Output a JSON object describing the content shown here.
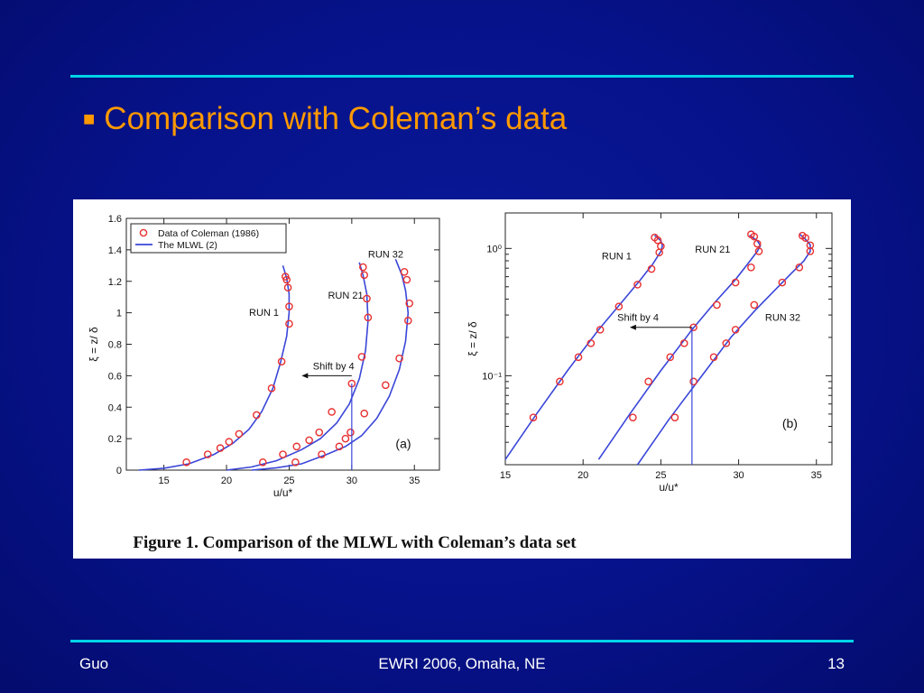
{
  "slide": {
    "bullet": "■",
    "title": "Comparison with Coleman’s data"
  },
  "footer": {
    "author": "Guo",
    "event": "EWRI 2006, Omaha, NE",
    "page": "13"
  },
  "figure_caption": "Figure 1.  Comparison of the MLWL with Coleman’s data set",
  "colors": {
    "background": "#06128a",
    "accent_rule": "#00d4e8",
    "title": "#ff9900",
    "model_line": "#3a46d8",
    "data_marker": "#e83030"
  },
  "chart_data": [
    {
      "type": "line",
      "panel_label": "(a)",
      "xlabel": "u/u*",
      "ylabel": "ξ = z/ δ",
      "xlim": [
        12,
        37
      ],
      "ylim": [
        0,
        1.6
      ],
      "x_ticks": [
        "15",
        "20",
        "25",
        "30",
        "35"
      ],
      "y_ticks": [
        "0",
        "0.2",
        "0.4",
        "0.6",
        "0.8",
        "1",
        "1.2",
        "1.4",
        "1.6"
      ],
      "legend": {
        "placement": "top-left",
        "entries": [
          "Data of Coleman (1986)",
          "The MLWL (2)"
        ]
      },
      "annotations": [
        {
          "text": "RUN 1",
          "x": 21.8,
          "y": 0.98
        },
        {
          "text": "RUN 21",
          "x": 28.1,
          "y": 1.09
        },
        {
          "text": "RUN 32",
          "x": 31.3,
          "y": 1.35
        },
        {
          "text": "Shift by 4",
          "x": 26.9,
          "y": 0.64
        },
        {
          "text": "(a)",
          "x": 33.5,
          "y": 0.14
        }
      ],
      "shift_arrow": {
        "from_x": 30,
        "to_x": 26,
        "y": 0.6
      },
      "vertical_line": {
        "x": 30,
        "y_from": 0,
        "y_to": 0.55
      },
      "series": [
        {
          "name": "RUN 1",
          "line": {
            "x": [
              13,
              15,
              17,
              19,
              20.5,
              21.8,
              22.8,
              23.7,
              24.3,
              24.8,
              25.0,
              25.0,
              24.8,
              24.5
            ],
            "y": [
              0.0,
              0.012,
              0.04,
              0.1,
              0.17,
              0.26,
              0.37,
              0.52,
              0.68,
              0.85,
              1.0,
              1.12,
              1.22,
              1.3
            ]
          },
          "points": {
            "x": [
              16.8,
              18.5,
              19.5,
              20.2,
              21.0,
              22.4,
              23.6,
              24.4,
              25.0,
              25.0,
              24.9,
              24.8,
              24.7
            ],
            "y": [
              0.05,
              0.1,
              0.14,
              0.18,
              0.23,
              0.35,
              0.52,
              0.69,
              0.93,
              1.04,
              1.16,
              1.21,
              1.23
            ]
          }
        },
        {
          "name": "RUN 21",
          "line": {
            "x": [
              20,
              22,
              24,
              26,
              27.5,
              28.8,
              29.8,
              30.6,
              31.1,
              31.3,
              31.2,
              30.9,
              30.6
            ],
            "y": [
              0.0,
              0.02,
              0.06,
              0.13,
              0.2,
              0.3,
              0.42,
              0.58,
              0.76,
              0.95,
              1.12,
              1.24,
              1.32
            ]
          },
          "points": {
            "x": [
              22.9,
              24.5,
              25.6,
              26.6,
              27.4,
              28.4,
              29.5,
              29.9,
              30.0,
              30.8,
              31.3,
              31.2,
              31.0,
              30.9
            ],
            "y": [
              0.05,
              0.1,
              0.15,
              0.19,
              0.24,
              0.37,
              0.2,
              0.24,
              0.55,
              0.72,
              0.97,
              1.09,
              1.24,
              1.29
            ]
          }
        },
        {
          "name": "RUN 32",
          "line": {
            "x": [
              22,
              24,
              26,
              28,
              29.5,
              30.8,
              32,
              33,
              33.8,
              34.3,
              34.5,
              34.3,
              34.0,
              33.5
            ],
            "y": [
              0.0,
              0.015,
              0.04,
              0.1,
              0.15,
              0.22,
              0.33,
              0.47,
              0.64,
              0.82,
              1.0,
              1.14,
              1.24,
              1.34
            ]
          },
          "points": {
            "x": [
              25.5,
              27.6,
              29.0,
              31.0,
              32.7,
              33.8,
              34.5,
              34.6,
              34.4,
              34.2
            ],
            "y": [
              0.05,
              0.1,
              0.15,
              0.36,
              0.54,
              0.71,
              0.95,
              1.06,
              1.21,
              1.26
            ]
          }
        }
      ]
    },
    {
      "type": "line",
      "panel_label": "(b)",
      "xlabel": "u/u*",
      "ylabel": "ξ = z/ δ",
      "yscale": "log",
      "xlim": [
        15,
        36
      ],
      "ylim": [
        0.02,
        1.9
      ],
      "x_ticks": [
        "15",
        "20",
        "25",
        "30",
        "35"
      ],
      "y_tick_labels": [
        "10⁻¹",
        "10⁰"
      ],
      "y_tick_values": [
        0.1,
        1
      ],
      "annotations": [
        {
          "text": "RUN 1",
          "x": 21.2,
          "y": 0.82
        },
        {
          "text": "RUN 21",
          "x": 27.2,
          "y": 0.93
        },
        {
          "text": "RUN 32",
          "x": 31.7,
          "y": 0.27
        },
        {
          "text": "Shift by 4",
          "x": 22.2,
          "y": 0.27
        },
        {
          "text": "(b)",
          "x": 32.8,
          "y": 0.039
        }
      ],
      "shift_arrow": {
        "from_x": 27,
        "to_x": 23,
        "y": 0.24
      },
      "vertical_line": {
        "x": 27,
        "y_from": 0.02,
        "y_to": 0.24
      },
      "series": [
        {
          "name": "RUN 1",
          "line": {
            "x": [
              15,
              17,
              19,
              21,
              22.5,
              23.7,
              24.5,
              25.0,
              25.1,
              25.0,
              24.6
            ],
            "y": [
              0.022,
              0.05,
              0.11,
              0.23,
              0.38,
              0.57,
              0.76,
              0.95,
              1.05,
              1.15,
              1.27
            ]
          },
          "points": {
            "x": [
              16.8,
              18.5,
              19.7,
              20.5,
              21.1,
              22.3,
              23.5,
              24.4,
              24.9,
              25.0,
              24.8,
              24.6
            ],
            "y": [
              0.047,
              0.09,
              0.14,
              0.18,
              0.23,
              0.35,
              0.52,
              0.69,
              0.93,
              1.04,
              1.16,
              1.22
            ]
          }
        },
        {
          "name": "RUN 21",
          "line": {
            "x": [
              21,
              23,
              25,
              27,
              28.5,
              29.8,
              30.6,
              31.2,
              31.4,
              31.2,
              30.7
            ],
            "y": [
              0.022,
              0.05,
              0.11,
              0.23,
              0.38,
              0.57,
              0.76,
              0.95,
              1.05,
              1.15,
              1.27
            ]
          },
          "points": {
            "x": [
              23.2,
              24.2,
              25.6,
              26.5,
              27.1,
              28.6,
              29.8,
              30.8,
              31.3,
              31.2,
              31.0,
              30.8
            ],
            "y": [
              0.047,
              0.09,
              0.14,
              0.18,
              0.24,
              0.36,
              0.54,
              0.71,
              0.95,
              1.09,
              1.24,
              1.29
            ]
          }
        },
        {
          "name": "RUN 32",
          "line": {
            "x": [
              23.5,
              25.5,
              27.5,
              29.5,
              31,
              32.4,
              33.4,
              34.2,
              34.6,
              34.6,
              34.3,
              33.9
            ],
            "y": [
              0.02,
              0.045,
              0.095,
              0.2,
              0.32,
              0.48,
              0.64,
              0.8,
              0.95,
              1.07,
              1.18,
              1.3
            ]
          },
          "points": {
            "x": [
              25.9,
              27.1,
              28.4,
              29.2,
              29.8,
              31.0,
              32.8,
              33.9,
              34.6,
              34.6,
              34.3,
              34.1
            ],
            "y": [
              0.047,
              0.09,
              0.14,
              0.18,
              0.23,
              0.36,
              0.54,
              0.71,
              0.95,
              1.06,
              1.21,
              1.26
            ]
          }
        }
      ]
    }
  ]
}
